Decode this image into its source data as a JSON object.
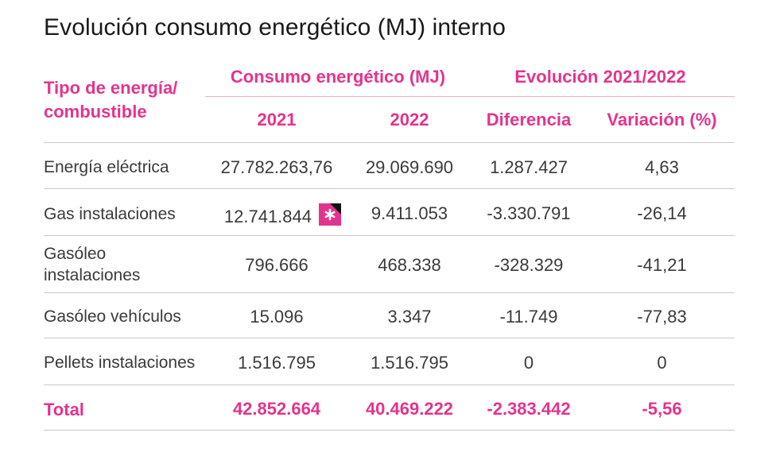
{
  "title": "Evolución consumo energético (MJ) interno",
  "header": {
    "col_type_line1": "Tipo de energía/",
    "col_type_line2": "combustible",
    "group_consumo": "Consumo energético (MJ)",
    "group_evolucion": "Evolución 2021/2022",
    "sub_2021": "2021",
    "sub_2022": "2022",
    "sub_diferencia": "Diferencia",
    "sub_variacion": "Variación (%)"
  },
  "rows": [
    {
      "label_line1": "Energía eléctrica",
      "label_line2": "",
      "v2021": "27.782.263,76",
      "v2022": "29.069.690",
      "diferencia": "1.287.427",
      "variacion": "4,63"
    },
    {
      "label_line1": "Gas instalaciones",
      "label_line2": "",
      "v2021": "12.741.844",
      "v2022": "9.411.053",
      "diferencia": "-3.330.791",
      "variacion": "-26,14"
    },
    {
      "label_line1": "Gasóleo",
      "label_line2": "instalaciones",
      "v2021": "796.666",
      "v2022": "468.338",
      "diferencia": "-328.329",
      "variacion": "-41,21"
    },
    {
      "label_line1": "Gasóleo vehículos",
      "label_line2": "",
      "v2021": "15.096",
      "v2022": "3.347",
      "diferencia": "-11.749",
      "variacion": "-77,83"
    },
    {
      "label_line1": "Pellets instalaciones",
      "label_line2": "",
      "v2021": "1.516.795",
      "v2022": "1.516.795",
      "diferencia": "0",
      "variacion": "0"
    }
  ],
  "total": {
    "label": "Total",
    "v2021": "42.852.664",
    "v2022": "40.469.222",
    "diferencia": "-2.383.442",
    "variacion": "-5,56"
  },
  "colors": {
    "accent": "#e3348d",
    "text": "#3a3a3a",
    "rule": "#c9c9c9"
  },
  "icons": {
    "note_marker": "asterisk-badge-icon"
  }
}
